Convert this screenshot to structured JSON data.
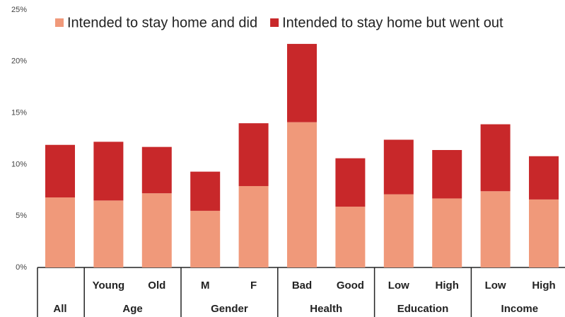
{
  "chart_data": {
    "type": "stacked_bar",
    "categories": [
      null,
      "Young",
      "Old",
      "M",
      "F",
      "Bad",
      "Good",
      "Low",
      "High",
      "Low",
      "High"
    ],
    "groups": [
      "All",
      "Age",
      "Gender",
      "Health",
      "Education",
      "Income"
    ],
    "series": [
      {
        "name": "Intended to stay home and did",
        "color": "#f0997a",
        "values": [
          6.8,
          6.5,
          7.2,
          5.5,
          7.9,
          14.1,
          5.9,
          7.1,
          6.7,
          7.4,
          6.6
        ]
      },
      {
        "name": "Intended to stay home but went out",
        "color": "#c8282a",
        "values": [
          5.1,
          5.7,
          4.5,
          3.8,
          6.1,
          7.6,
          4.7,
          5.3,
          4.7,
          6.5,
          4.2
        ]
      }
    ],
    "ylim": [
      0,
      25
    ],
    "yticks": [
      {
        "value": 0,
        "label": "0%"
      },
      {
        "value": 5,
        "label": "5%"
      },
      {
        "value": 10,
        "label": "10%"
      },
      {
        "value": 15,
        "label": "15%"
      },
      {
        "value": 20,
        "label": "20%"
      },
      {
        "value": 25,
        "label": "25%"
      }
    ],
    "legend": "top"
  }
}
